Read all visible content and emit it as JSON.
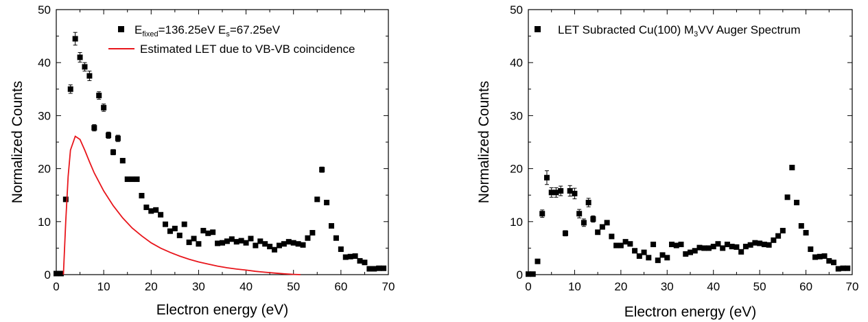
{
  "chart_data": [
    {
      "type": "scatter",
      "xlabel": "Electron energy (eV)",
      "ylabel": "Normalized Counts",
      "xlim": [
        0,
        70
      ],
      "ylim": [
        0,
        50
      ],
      "xticks": [
        0,
        10,
        20,
        30,
        40,
        50,
        60,
        70
      ],
      "yticks": [
        0,
        10,
        20,
        30,
        40,
        50
      ],
      "grid": false,
      "legend_position": "top-right",
      "legend": {
        "scatter": {
          "main": "E",
          "sub1": "fixed",
          "mid": "=136.25eV E",
          "sub2": "s",
          "tail": "=67.25eV"
        },
        "line": "Estimated LET due to VB-VB coincidence"
      },
      "series": [
        {
          "kind": "scatter",
          "marker": "square",
          "color": "#000000",
          "x": [
            0,
            1,
            2,
            3,
            4,
            5,
            6,
            7,
            8,
            9,
            10,
            11,
            12,
            13,
            14,
            15,
            16,
            17,
            18,
            19,
            20,
            21,
            22,
            23,
            24,
            25,
            26,
            27,
            28,
            29,
            30,
            31,
            32,
            33,
            34,
            35,
            36,
            37,
            38,
            39,
            40,
            41,
            42,
            43,
            44,
            45,
            46,
            47,
            48,
            49,
            50,
            51,
            52,
            53,
            54,
            55,
            56,
            57,
            58,
            59,
            60,
            61,
            62,
            63,
            64,
            65,
            66,
            67,
            68,
            69
          ],
          "y": [
            0.2,
            0.2,
            14.2,
            35.0,
            44.5,
            41.0,
            39.2,
            37.5,
            27.7,
            33.8,
            31.5,
            26.3,
            23.1,
            25.7,
            21.5,
            18.0,
            18.0,
            18.0,
            14.9,
            12.7,
            12.0,
            12.2,
            11.3,
            9.5,
            8.2,
            8.7,
            7.4,
            9.5,
            6.1,
            6.8,
            5.8,
            8.3,
            7.8,
            8.0,
            5.9,
            6.0,
            6.3,
            6.7,
            6.2,
            6.4,
            6.0,
            6.8,
            5.5,
            6.3,
            5.8,
            5.3,
            4.7,
            5.5,
            5.8,
            6.2,
            6.0,
            5.8,
            5.6,
            6.9,
            7.9,
            14.2,
            19.8,
            13.6,
            9.2,
            6.9,
            4.8,
            3.3,
            3.4,
            3.5,
            2.6,
            2.3,
            1.1,
            1.1,
            1.2,
            1.2
          ],
          "errors": [
            0,
            0,
            0,
            0.8,
            1.2,
            0.9,
            0.8,
            0.9,
            0.6,
            0.7,
            0.7,
            0.6,
            0.5,
            0.6,
            0,
            0,
            0,
            0,
            0,
            0,
            0,
            0,
            0,
            0,
            0,
            0,
            0,
            0,
            0,
            0,
            0,
            0,
            0,
            0,
            0,
            0,
            0,
            0,
            0,
            0,
            0,
            0,
            0,
            0,
            0,
            0,
            0,
            0,
            0,
            0,
            0,
            0,
            0,
            0,
            0,
            0,
            0.5,
            0,
            0,
            0,
            0,
            0,
            0,
            0,
            0,
            0,
            0,
            0,
            0,
            0
          ]
        },
        {
          "kind": "line",
          "color": "#e8151b",
          "x": [
            1.5,
            2.0,
            2.5,
            3.0,
            4.0,
            5.0,
            6.0,
            7.0,
            8.0,
            10.0,
            12.0,
            14.0,
            16.0,
            18.0,
            20.0,
            22.0,
            24.0,
            26.0,
            28.0,
            30.0,
            32.0,
            34.0,
            36.0,
            38.0,
            40.0,
            42.0,
            44.0,
            46.0,
            48.0,
            50.0,
            51.5
          ],
          "y": [
            0,
            10.0,
            18.5,
            23.5,
            26.1,
            25.5,
            23.5,
            21.3,
            19.2,
            15.8,
            13.0,
            10.7,
            8.8,
            7.3,
            6.0,
            5.0,
            4.2,
            3.5,
            2.9,
            2.4,
            2.0,
            1.6,
            1.3,
            1.05,
            0.85,
            0.62,
            0.45,
            0.3,
            0.15,
            0.05,
            0
          ]
        }
      ]
    },
    {
      "type": "scatter",
      "xlabel": "Electron energy (eV)",
      "ylabel": "Normalized Counts",
      "xlim": [
        0,
        70
      ],
      "ylim": [
        0,
        50
      ],
      "xticks": [
        0,
        10,
        20,
        30,
        40,
        50,
        60,
        70
      ],
      "yticks": [
        0,
        10,
        20,
        30,
        40,
        50
      ],
      "grid": false,
      "legend_position": "top-right",
      "legend": {
        "scatter": {
          "pre": "LET Subracted Cu(100) M",
          "sub": "3",
          "post": "VV Auger Spectrum"
        }
      },
      "series": [
        {
          "kind": "scatter",
          "marker": "square",
          "color": "#000000",
          "x": [
            0,
            1,
            2,
            3,
            4,
            5,
            6,
            7,
            8,
            9,
            10,
            11,
            12,
            13,
            14,
            15,
            16,
            17,
            18,
            19,
            20,
            21,
            22,
            23,
            24,
            25,
            26,
            27,
            28,
            29,
            30,
            31,
            32,
            33,
            34,
            35,
            36,
            37,
            38,
            39,
            40,
            41,
            42,
            43,
            44,
            45,
            46,
            47,
            48,
            49,
            50,
            51,
            52,
            53,
            54,
            55,
            56,
            57,
            58,
            59,
            60,
            61,
            62,
            63,
            64,
            65,
            66,
            67,
            68,
            69
          ],
          "y": [
            0.1,
            0.1,
            2.5,
            11.5,
            18.3,
            15.5,
            15.5,
            15.8,
            7.8,
            15.8,
            15.3,
            11.5,
            9.8,
            13.6,
            10.5,
            8.0,
            9.0,
            9.8,
            7.2,
            5.5,
            5.5,
            6.2,
            5.8,
            4.5,
            3.5,
            4.2,
            3.2,
            5.7,
            2.7,
            3.7,
            3.2,
            5.7,
            5.5,
            5.7,
            3.9,
            4.2,
            4.5,
            5.1,
            5.0,
            5.0,
            5.3,
            5.8,
            5.0,
            5.7,
            5.3,
            5.2,
            4.3,
            5.3,
            5.6,
            6.0,
            5.9,
            5.7,
            5.6,
            6.5,
            7.3,
            8.3,
            14.6,
            20.2,
            13.6,
            9.2,
            7.9,
            4.8,
            3.3,
            3.4,
            3.5,
            2.6,
            2.3,
            1.1,
            1.2,
            1.2
          ],
          "errors": [
            0,
            0,
            0,
            0.7,
            1.3,
            0.9,
            0.9,
            0.9,
            0.5,
            1.0,
            1.0,
            0.8,
            0.7,
            0.8,
            0.6,
            0,
            0,
            0,
            0,
            0,
            0,
            0,
            0,
            0,
            0,
            0,
            0,
            0,
            0,
            0,
            0,
            0,
            0,
            0,
            0,
            0,
            0,
            0,
            0,
            0,
            0,
            0,
            0,
            0,
            0,
            0,
            0,
            0,
            0,
            0,
            0,
            0,
            0,
            0,
            0,
            0,
            0.4,
            0.4,
            0,
            0,
            0,
            0,
            0,
            0,
            0,
            0,
            0,
            0,
            0,
            0
          ]
        }
      ]
    }
  ]
}
